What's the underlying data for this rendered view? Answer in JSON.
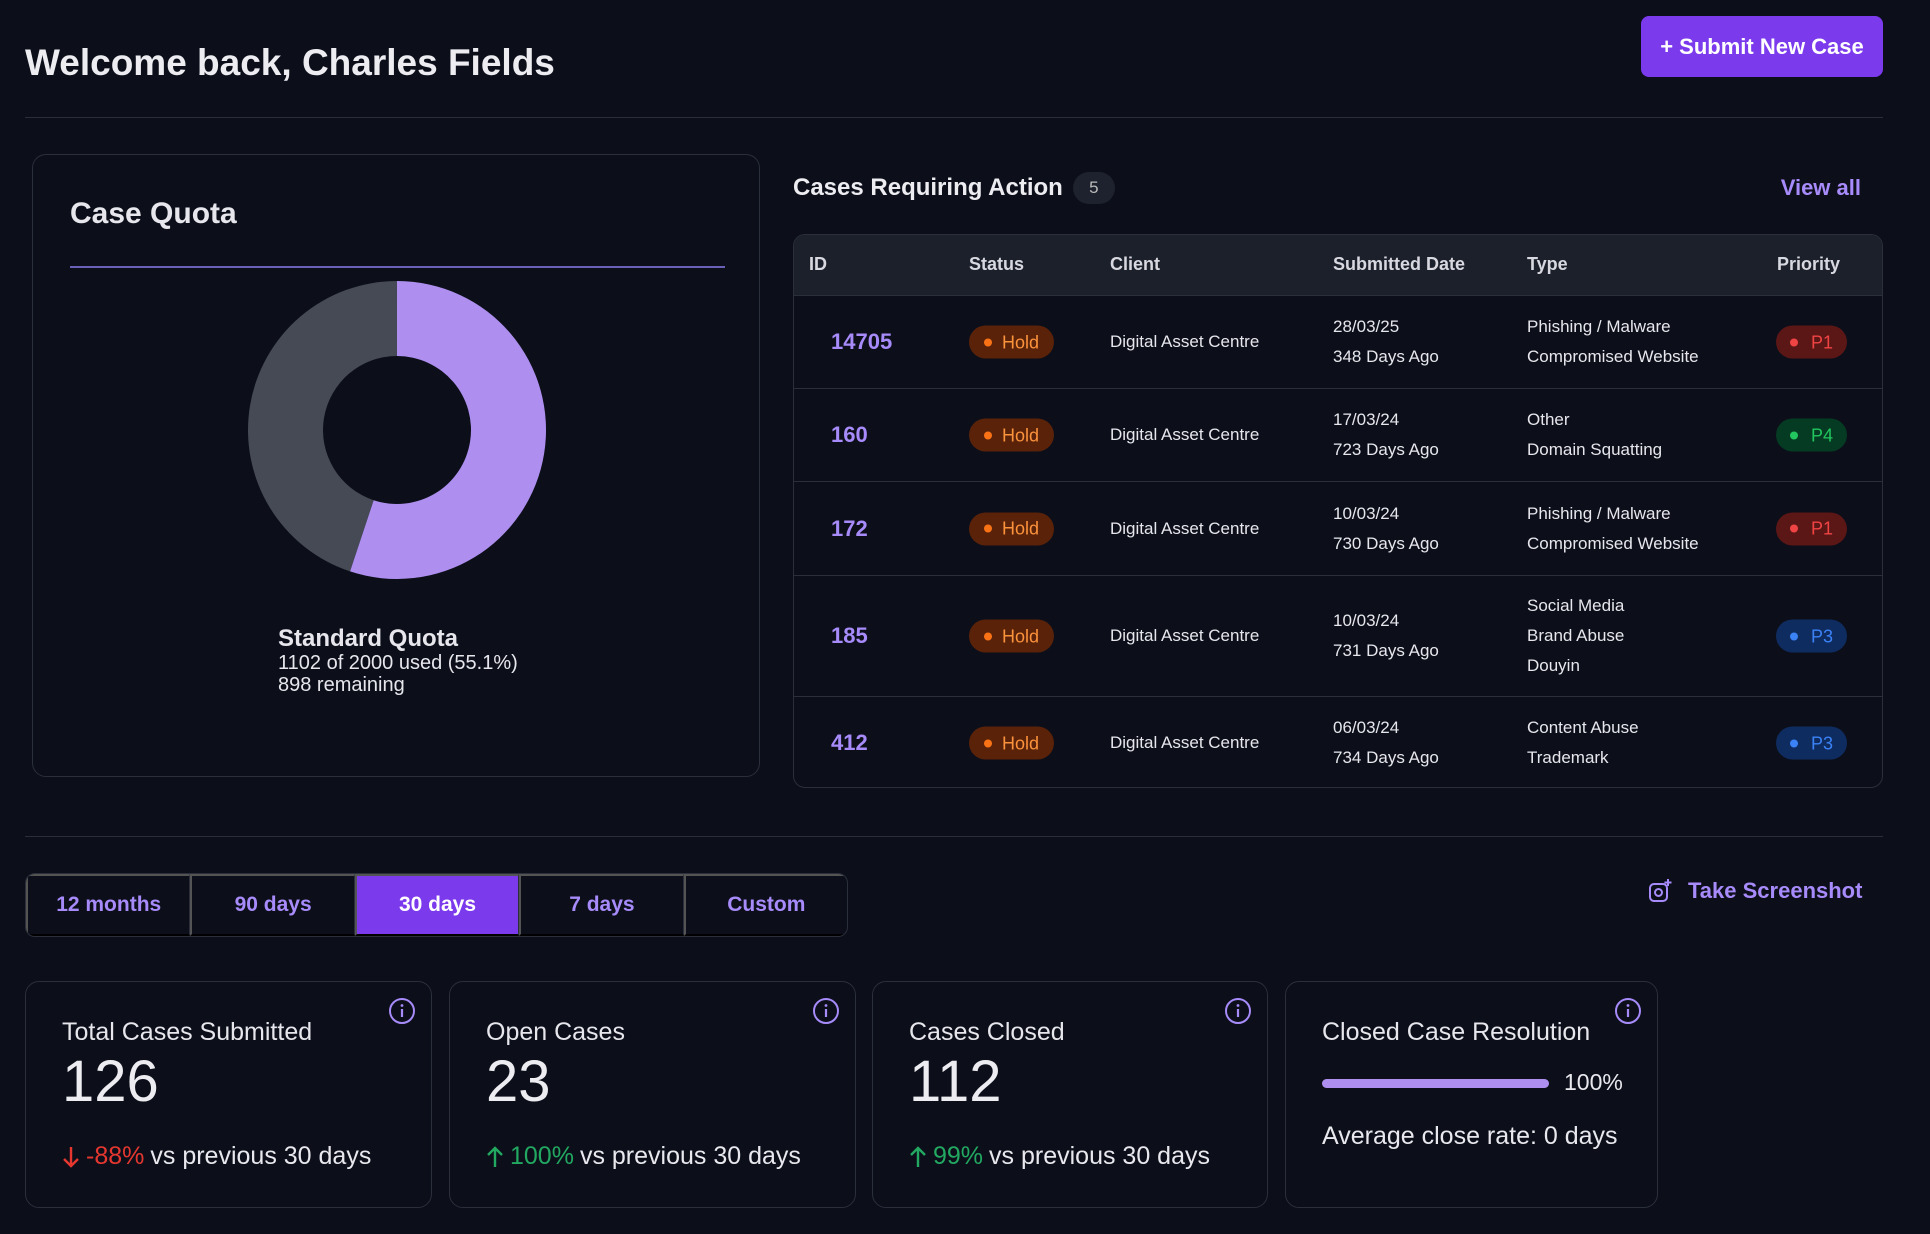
{
  "header": {
    "title": "Welcome back, Charles Fields",
    "submit_label": "+ Submit New Case"
  },
  "quota": {
    "title": "Case Quota",
    "name": "Standard Quota",
    "used_text": "1102 of 2000 used (55.1%)",
    "remaining_text": "898 remaining",
    "used": 1102,
    "total": 2000,
    "colors": {
      "used": "#ae8ff0",
      "remaining": "#454a55"
    }
  },
  "cases": {
    "title": "Cases Requiring Action",
    "count": "5",
    "view_all": "View all",
    "columns": [
      "ID",
      "Status",
      "Client",
      "Submitted Date",
      "Type",
      "Priority"
    ],
    "rows": [
      {
        "id": "14705",
        "status": "Hold",
        "client": "Digital Asset Centre",
        "date": "28/03/25",
        "ago": "348 Days Ago",
        "type": [
          "Phishing / Malware",
          "Compromised Website"
        ],
        "priority": "P1"
      },
      {
        "id": "160",
        "status": "Hold",
        "client": "Digital Asset Centre",
        "date": "17/03/24",
        "ago": "723 Days Ago",
        "type": [
          "Other",
          "Domain Squatting"
        ],
        "priority": "P4"
      },
      {
        "id": "172",
        "status": "Hold",
        "client": "Digital Asset Centre",
        "date": "10/03/24",
        "ago": "730 Days Ago",
        "type": [
          "Phishing / Malware",
          "Compromised Website"
        ],
        "priority": "P1"
      },
      {
        "id": "185",
        "status": "Hold",
        "client": "Digital Asset Centre",
        "date": "10/03/24",
        "ago": "731 Days Ago",
        "type": [
          "Social Media",
          "Brand Abuse",
          "Douyin"
        ],
        "priority": "P3"
      },
      {
        "id": "412",
        "status": "Hold",
        "client": "Digital Asset Centre",
        "date": "06/03/24",
        "ago": "734 Days Ago",
        "type": [
          "Content Abuse",
          "Trademark"
        ],
        "priority": "P3"
      }
    ]
  },
  "ranges": {
    "tabs": [
      "12 months",
      "90 days",
      "30 days",
      "7 days",
      "Custom"
    ],
    "active": "30 days",
    "screenshot_label": "Take Screenshot"
  },
  "stats": [
    {
      "title": "Total Cases Submitted",
      "value": "126",
      "delta": "-88%",
      "direction": "down",
      "suffix": "vs previous 30 days"
    },
    {
      "title": "Open Cases",
      "value": "23",
      "delta": "100%",
      "direction": "up",
      "suffix": "vs previous 30 days"
    },
    {
      "title": "Cases Closed",
      "value": "112",
      "delta": "99%",
      "direction": "up",
      "suffix": "vs previous 30 days"
    }
  ],
  "resolution": {
    "title": "Closed Case Resolution",
    "percent": 100,
    "percent_label": "100%",
    "avg": "Average close rate: 0 days"
  }
}
